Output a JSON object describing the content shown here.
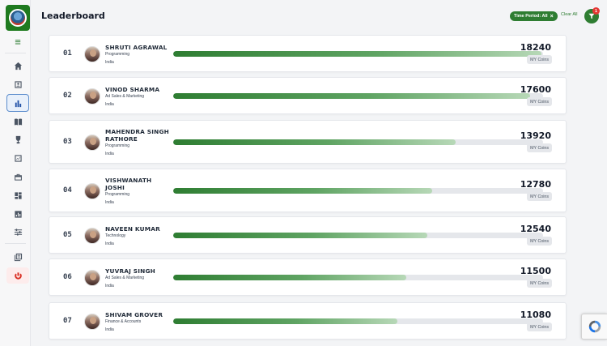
{
  "header": {
    "title": "Leaderboard",
    "filter_chip": "Time Period: All",
    "chip_close": "×",
    "clear_all": "Clear All",
    "filter_badge": "1"
  },
  "sidebar": {
    "menu_icon": "≡",
    "items": [
      {
        "name": "home-icon"
      },
      {
        "name": "id-card-icon"
      },
      {
        "name": "bar-chart-icon",
        "active": true
      },
      {
        "name": "book-icon"
      },
      {
        "name": "trophy-icon"
      },
      {
        "name": "report-icon"
      },
      {
        "name": "briefcase-icon"
      },
      {
        "name": "dashboard-icon"
      },
      {
        "name": "analytics-icon"
      },
      {
        "name": "sliders-icon"
      },
      {
        "name": "library-icon"
      },
      {
        "name": "power-icon"
      }
    ]
  },
  "colors": {
    "brand": "#2e7d32",
    "active_nav": "#1e4fa5",
    "danger": "#e53935"
  },
  "leaderboard": {
    "max_score": 18240,
    "coins_label": "MY Coins",
    "rows": [
      {
        "rank": "01",
        "name_lines": [
          "SHRUTI AGRAWAL"
        ],
        "department": "Programming",
        "country": "India",
        "score": "18240",
        "progress": 0.995
      },
      {
        "rank": "02",
        "name_lines": [
          "VINOD SHARMA"
        ],
        "department": "Ad Sales & Marketing",
        "country": "India",
        "score": "17600",
        "progress": 0.965
      },
      {
        "rank": "03",
        "name_lines": [
          "MAHENDRA SINGH",
          "RATHORE"
        ],
        "department": "Programming",
        "country": "India",
        "score": "13920",
        "progress": 0.763
      },
      {
        "rank": "04",
        "name_lines": [
          "VISHWANATH",
          "JOSHI"
        ],
        "department": "Programming",
        "country": "India",
        "score": "12780",
        "progress": 0.7
      },
      {
        "rank": "05",
        "name_lines": [
          "NAVEEN KUMAR"
        ],
        "department": "Technology",
        "country": "India",
        "score": "12540",
        "progress": 0.687
      },
      {
        "rank": "06",
        "name_lines": [
          "YUVRAJ SINGH"
        ],
        "department": "Ad Sales & Marketing",
        "country": "India",
        "score": "11500",
        "progress": 0.63
      },
      {
        "rank": "07",
        "name_lines": [
          "SHIVAM GROVER"
        ],
        "department": "Finance & Accounts",
        "country": "India",
        "score": "11080",
        "progress": 0.607
      }
    ]
  }
}
